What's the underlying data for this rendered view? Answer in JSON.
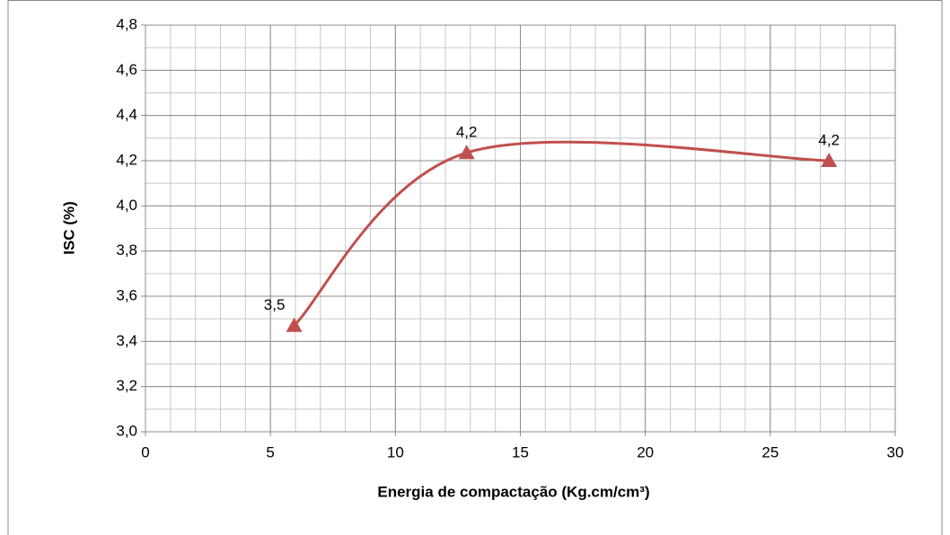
{
  "chart_data": {
    "type": "scatter-smooth",
    "x_label": "Energia de compactação (Kg.cm/cm³)",
    "y_label": "ISC (%)",
    "series": [
      {
        "color": "#c0504d",
        "x": [
          5.95,
          12.85,
          27.35
        ],
        "values": [
          3.47,
          4.235,
          4.2
        ],
        "value_labels": [
          "3,5",
          "4,2",
          "4,2"
        ]
      }
    ],
    "xlim": [
      0,
      30
    ],
    "xticks": [
      0,
      5,
      10,
      15,
      20,
      25,
      30
    ],
    "ylim": [
      3.0,
      4.8
    ],
    "yticks": [
      {
        "value": 3.0,
        "label": "3,0"
      },
      {
        "value": 3.2,
        "label": "3,2"
      },
      {
        "value": 3.4,
        "label": "3,4"
      },
      {
        "value": 3.6,
        "label": "3,6"
      },
      {
        "value": 3.8,
        "label": "3,8"
      },
      {
        "value": 4.0,
        "label": "4,0"
      },
      {
        "value": 4.2,
        "label": "4,2"
      },
      {
        "value": 4.4,
        "label": "4,4"
      },
      {
        "value": 4.6,
        "label": "4,6"
      },
      {
        "value": 4.8,
        "label": "4,8"
      }
    ],
    "grid": true,
    "minor_grid": {
      "x": 1,
      "y": 0.1
    }
  }
}
